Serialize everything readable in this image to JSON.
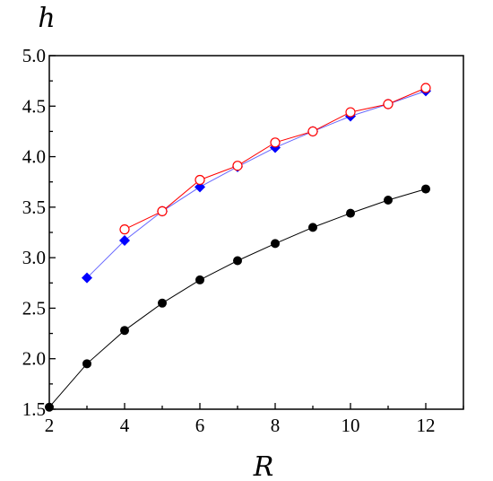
{
  "chart_data": {
    "type": "line",
    "title": "",
    "xlabel": "R",
    "ylabel": "h",
    "xlim": [
      2,
      13
    ],
    "ylim": [
      1.5,
      5.0
    ],
    "x_ticks": [
      2,
      4,
      6,
      8,
      10,
      12
    ],
    "y_ticks": [
      "1.5",
      "2.0",
      "2.5",
      "3.0",
      "3.5",
      "4.0",
      "4.5",
      "5.0"
    ],
    "grid": false,
    "legend": "none",
    "series": [
      {
        "marker": "filled-circle",
        "color": "#000000",
        "line_color": "#000000",
        "x": [
          2,
          3,
          4,
          5,
          6,
          7,
          8,
          9,
          10,
          11,
          12
        ],
        "y": [
          1.52,
          1.95,
          2.28,
          2.55,
          2.78,
          2.97,
          3.14,
          3.3,
          3.44,
          3.57,
          3.68
        ]
      },
      {
        "marker": "filled-diamond",
        "color": "#0000ff",
        "line_color": "#6666ff",
        "x": [
          3,
          4,
          5,
          6,
          7,
          8,
          9,
          10,
          11,
          12
        ],
        "y": [
          2.8,
          3.17,
          3.46,
          3.7,
          3.9,
          4.09,
          4.25,
          4.4,
          4.52,
          4.65
        ]
      },
      {
        "marker": "open-circle",
        "color": "#ff0000",
        "line_color": "#ff0000",
        "x": [
          4,
          5,
          6,
          7,
          8,
          9,
          10,
          11,
          12
        ],
        "y": [
          3.28,
          3.46,
          3.77,
          3.91,
          4.14,
          4.25,
          4.44,
          4.52,
          4.68
        ]
      }
    ]
  }
}
